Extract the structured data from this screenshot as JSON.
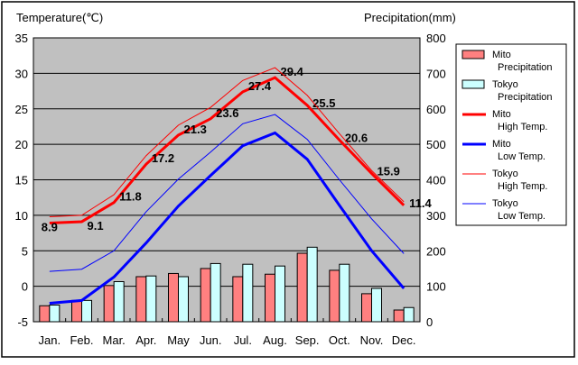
{
  "chart_data": {
    "type": "bar+line",
    "ylabel_left": "Temperature(℃)",
    "ylabel_right": "Precipitation(mm)",
    "ylim_left": [
      -5,
      35
    ],
    "ylim_right": [
      0,
      800
    ],
    "yticks_left": [
      "35",
      "30",
      "25",
      "20",
      "15",
      "10",
      "5",
      "0",
      "-5"
    ],
    "yticks_right": [
      "800",
      "700",
      "600",
      "500",
      "400",
      "300",
      "200",
      "100",
      "0"
    ],
    "categories": [
      "Jan.",
      "Feb.",
      "Mar.",
      "Apr.",
      "May",
      "Jun.",
      "Jul.",
      "Aug.",
      "Sep.",
      "Oct.",
      "Nov.",
      "Dec."
    ],
    "grid": true,
    "legend_placement": "right",
    "series": [
      {
        "name": "Mito Precipitation",
        "legend": [
          "Mito",
          "Precipitation"
        ],
        "kind": "bar",
        "axis": "right",
        "color": "#ff8080",
        "values": [
          45,
          60,
          102,
          127,
          136,
          150,
          127,
          134,
          193,
          145,
          79,
          33
        ]
      },
      {
        "name": "Tokyo Precipitation",
        "legend": [
          "Tokyo",
          "Precipitation"
        ],
        "kind": "bar",
        "axis": "right",
        "color": "#ccffff",
        "values": [
          47,
          60,
          113,
          129,
          127,
          164,
          162,
          157,
          210,
          162,
          94,
          40
        ]
      },
      {
        "name": "Mito High Temp.",
        "legend": [
          "Mito",
          "High Temp."
        ],
        "kind": "line",
        "axis": "left",
        "color": "#ff0000",
        "width": 3,
        "values": [
          8.9,
          9.1,
          11.8,
          17.2,
          21.3,
          23.6,
          27.4,
          29.4,
          25.5,
          20.6,
          15.9,
          11.4
        ],
        "labels": [
          "8.9",
          "9.1",
          "11.8",
          "17.2",
          "21.3",
          "23.6",
          "27.4",
          "29.4",
          "25.5",
          "20.6",
          "15.9",
          "11.4"
        ]
      },
      {
        "name": "Mito Low Temp.",
        "legend": [
          "Mito",
          "Low Temp."
        ],
        "kind": "line",
        "axis": "left",
        "color": "#0000ff",
        "width": 3,
        "values": [
          -2.4,
          -2.0,
          1.3,
          6.1,
          11.3,
          15.6,
          19.8,
          21.6,
          17.9,
          11.4,
          5.0,
          -0.3
        ]
      },
      {
        "name": "Tokyo High Temp.",
        "legend": [
          "Tokyo",
          "High Temp."
        ],
        "kind": "line",
        "axis": "left",
        "color": "#ff0000",
        "width": 1,
        "values": [
          9.8,
          10.0,
          12.9,
          18.4,
          22.7,
          25.2,
          29.0,
          30.8,
          26.9,
          21.5,
          16.3,
          11.9
        ]
      },
      {
        "name": "Tokyo Low Temp.",
        "legend": [
          "Tokyo",
          "Low Temp."
        ],
        "kind": "line",
        "axis": "left",
        "color": "#0000ff",
        "width": 1,
        "values": [
          2.1,
          2.4,
          5.0,
          10.5,
          15.1,
          18.9,
          22.9,
          24.2,
          20.7,
          15.0,
          9.5,
          4.6
        ]
      }
    ]
  }
}
